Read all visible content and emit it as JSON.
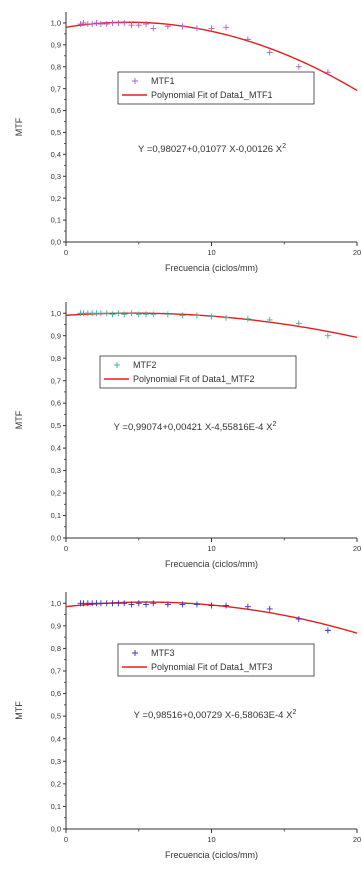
{
  "chart_data": [
    {
      "type": "scatter",
      "xlabel": "Frecuencia (ciclos/mm)",
      "ylabel": "MTF",
      "xlim": [
        0,
        20
      ],
      "ylim": [
        0,
        1.05
      ],
      "xticks": [
        "0",
        "10",
        "20"
      ],
      "yticks": [
        "0,0",
        "0,1",
        "0,2",
        "0,3",
        "0,4",
        "0,5",
        "0,6",
        "0,7",
        "0,8",
        "0,9",
        "1,0"
      ],
      "legend_placement": "center",
      "series": [
        {
          "name": "MTF1",
          "kind": "points",
          "marker": "+",
          "color": "#b060c0",
          "x": [
            1.0,
            1.2,
            1.5,
            1.8,
            2.1,
            2.4,
            2.8,
            3.2,
            3.6,
            4.0,
            4.5,
            5.0,
            5.5,
            6.0,
            7.0,
            8.0,
            9.0,
            10.0,
            11.0,
            12.5,
            14.0,
            16.0,
            18.0
          ],
          "y": [
            0.995,
            1.0,
            0.995,
            0.995,
            1.0,
            0.995,
            0.995,
            1.0,
            1.0,
            1.0,
            0.99,
            0.99,
            0.995,
            0.975,
            0.985,
            0.985,
            0.975,
            0.975,
            0.98,
            0.925,
            0.865,
            0.8,
            0.775
          ]
        },
        {
          "name": "Polynomial Fit of Data1_MTF1",
          "kind": "fit",
          "color": "#e02020",
          "coefficients": [
            0.98027,
            0.01077,
            -0.00126
          ]
        }
      ],
      "annotation": "Y =0,98027+0,01077 X-0,00126 X",
      "annotation_exp": "2"
    },
    {
      "type": "scatter",
      "xlabel": "Frecuencia (ciclos/mm)",
      "ylabel": "MTF",
      "xlim": [
        0,
        20
      ],
      "ylim": [
        0,
        1.05
      ],
      "xticks": [
        "0",
        "10",
        "20"
      ],
      "yticks": [
        "0,0",
        "0,1",
        "0,2",
        "0,3",
        "0,4",
        "0,5",
        "0,6",
        "0,7",
        "0,8",
        "0,9",
        "1,0"
      ],
      "legend_placement": "center",
      "series": [
        {
          "name": "MTF2",
          "kind": "points",
          "marker": "+",
          "color": "#40b0a0",
          "x": [
            1.0,
            1.2,
            1.5,
            1.8,
            2.1,
            2.4,
            2.8,
            3.2,
            3.6,
            4.0,
            4.5,
            5.0,
            5.5,
            6.0,
            7.0,
            8.0,
            9.0,
            10.0,
            11.0,
            12.5,
            14.0,
            16.0,
            18.0
          ],
          "y": [
            1.0,
            1.0,
            1.0,
            1.0,
            1.0,
            1.0,
            1.0,
            0.995,
            1.0,
            0.995,
            1.0,
            0.995,
            0.995,
            0.995,
            0.995,
            0.99,
            0.99,
            0.985,
            0.98,
            0.975,
            0.97,
            0.955,
            0.9
          ]
        },
        {
          "name": "Polynomial Fit of Data1_MTF2",
          "kind": "fit",
          "color": "#e02020",
          "coefficients": [
            0.99074,
            0.00421,
            -0.000455816
          ]
        }
      ],
      "annotation": "Y =0,99074+0,00421 X-4,55816E-4 X",
      "annotation_exp": "2"
    },
    {
      "type": "scatter",
      "xlabel": "Frecuencia (ciclos/mm)",
      "ylabel": "MTF",
      "xlim": [
        0,
        20
      ],
      "ylim": [
        0,
        1.05
      ],
      "xticks": [
        "0",
        "10",
        "20"
      ],
      "yticks": [
        "0,0",
        "0,1",
        "0,2",
        "0,3",
        "0,4",
        "0,5",
        "0,6",
        "0,7",
        "0,8",
        "0,9",
        "1,0"
      ],
      "legend_placement": "center",
      "series": [
        {
          "name": "MTF3",
          "kind": "points",
          "marker": "+",
          "color": "#3030c8",
          "x": [
            1.0,
            1.2,
            1.5,
            1.8,
            2.1,
            2.4,
            2.8,
            3.2,
            3.6,
            4.0,
            4.5,
            5.0,
            5.5,
            6.0,
            7.0,
            8.0,
            9.0,
            10.0,
            11.0,
            12.5,
            14.0,
            16.0,
            18.0
          ],
          "y": [
            1.0,
            1.0,
            1.0,
            1.0,
            1.0,
            1.0,
            1.0,
            1.0,
            1.0,
            1.0,
            0.995,
            1.0,
            0.995,
            1.0,
            0.995,
            0.995,
            0.995,
            0.99,
            0.99,
            0.985,
            0.975,
            0.93,
            0.88
          ]
        },
        {
          "name": "Polynomial Fit of Data1_MTF3",
          "kind": "fit",
          "color": "#e02020",
          "coefficients": [
            0.98516,
            0.00729,
            -0.000658063
          ]
        }
      ],
      "annotation": "Y =0,98516+0,00729 X-6,58063E-4 X",
      "annotation_exp": "2"
    }
  ]
}
